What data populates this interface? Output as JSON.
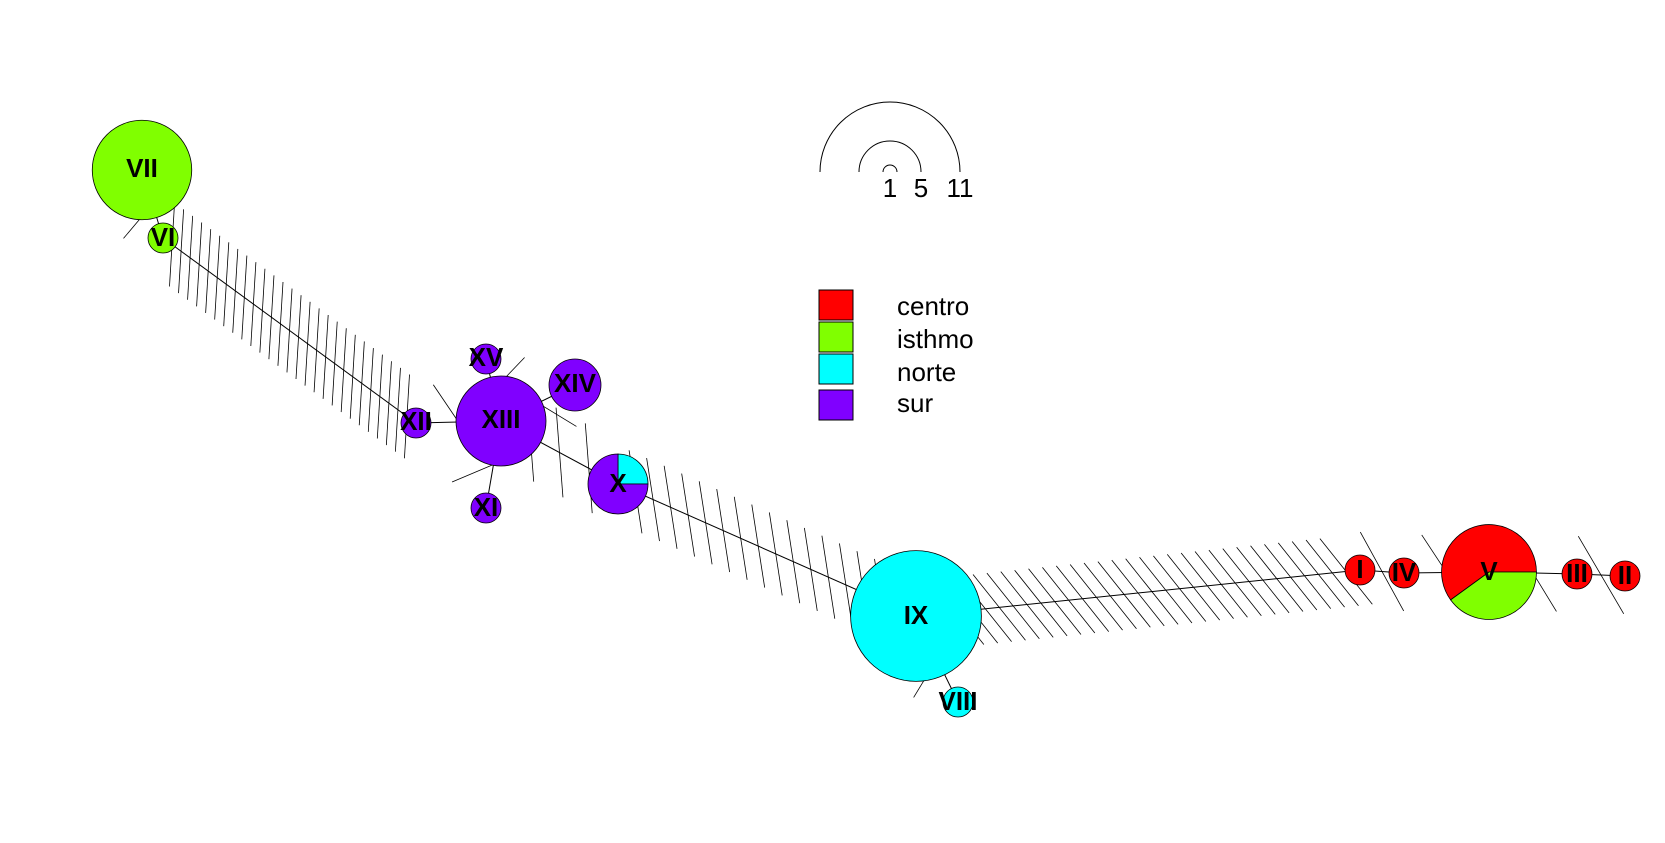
{
  "scale": {
    "labels": [
      "1",
      "5",
      "11"
    ]
  },
  "legend": {
    "entries": [
      {
        "label": "centro",
        "color": "#ff0000"
      },
      {
        "label": "isthmo",
        "color": "#80ff00"
      },
      {
        "label": "norte",
        "color": "#00ffff"
      },
      {
        "label": "sur",
        "color": "#8000ff"
      }
    ]
  },
  "haplotypes": [
    {
      "id": "VII",
      "size": 11,
      "composition": {
        "isthmo": 11
      }
    },
    {
      "id": "VI",
      "size": 1,
      "composition": {
        "isthmo": 1
      }
    },
    {
      "id": "XV",
      "size": 1,
      "composition": {
        "sur": 1
      }
    },
    {
      "id": "XII",
      "size": 1,
      "composition": {
        "sur": 1
      }
    },
    {
      "id": "XIII",
      "size": 9,
      "composition": {
        "sur": 9
      }
    },
    {
      "id": "XIV",
      "size": 3,
      "composition": {
        "sur": 3
      }
    },
    {
      "id": "XI",
      "size": 1,
      "composition": {
        "sur": 1
      }
    },
    {
      "id": "X",
      "size": 4,
      "composition": {
        "norte": 1,
        "sur": 3
      }
    },
    {
      "id": "IX",
      "size": 19,
      "composition": {
        "norte": 19
      }
    },
    {
      "id": "VIII",
      "size": 1,
      "composition": {
        "norte": 1
      }
    },
    {
      "id": "I",
      "size": 1,
      "composition": {
        "centro": 1
      }
    },
    {
      "id": "IV",
      "size": 1,
      "composition": {
        "centro": 1
      }
    },
    {
      "id": "V",
      "size": 10,
      "composition": {
        "centro": 6,
        "isthmo": 4
      }
    },
    {
      "id": "III",
      "size": 1,
      "composition": {
        "centro": 1
      }
    },
    {
      "id": "II",
      "size": 1,
      "composition": {
        "centro": 1
      }
    }
  ],
  "links": [
    {
      "from": "VI",
      "to": "VII",
      "steps": 1
    },
    {
      "from": "VI",
      "to": "XII",
      "steps": 27
    },
    {
      "from": "XII",
      "to": "XIII",
      "steps": 1
    },
    {
      "from": "XV",
      "to": "XIII",
      "steps": 1
    },
    {
      "from": "XIV",
      "to": "XIII",
      "steps": 1
    },
    {
      "from": "XI",
      "to": "XIII",
      "steps": 1
    },
    {
      "from": "XIII",
      "to": "X",
      "steps": 3
    },
    {
      "from": "X",
      "to": "IX",
      "steps": 16
    },
    {
      "from": "IX",
      "to": "VIII",
      "steps": 1
    },
    {
      "from": "IX",
      "to": "I",
      "steps": 31
    },
    {
      "from": "I",
      "to": "IV",
      "steps": 1
    },
    {
      "from": "IV",
      "to": "V",
      "steps": 1
    },
    {
      "from": "V",
      "to": "III",
      "steps": 1
    },
    {
      "from": "III",
      "to": "II",
      "steps": 1
    }
  ]
}
